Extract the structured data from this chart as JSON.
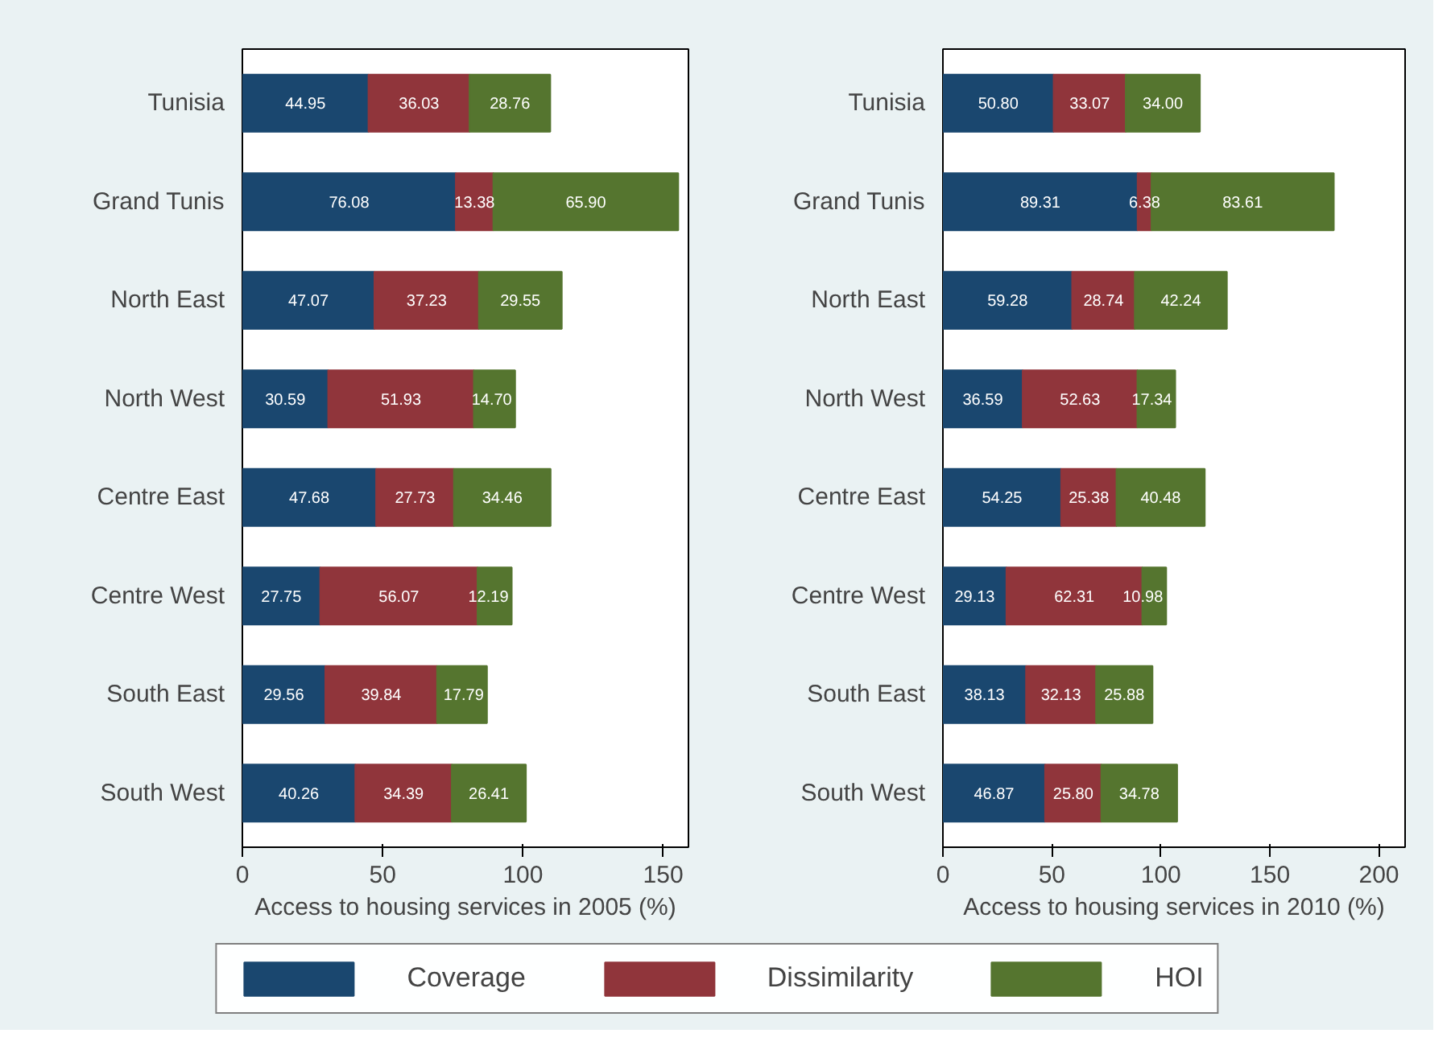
{
  "chart_data": [
    {
      "type": "bar",
      "orientation": "horizontal",
      "stacked": true,
      "xlabel": "Access to housing services in 2005 (%)",
      "categories": [
        "Tunisia",
        "Grand Tunis",
        "North East",
        "North West",
        "Centre East",
        "Centre West",
        "South East",
        "South West"
      ],
      "xlim": [
        0,
        159
      ],
      "xticks": [
        0,
        50,
        100,
        150
      ],
      "grid": false,
      "legend": "bottom",
      "series": [
        {
          "name": "Coverage",
          "color": "#1a476f",
          "values": [
            44.95,
            76.08,
            47.07,
            30.59,
            47.68,
            27.75,
            29.56,
            40.26
          ],
          "value_labels": [
            "44.95",
            "76.08",
            "47.07",
            "30.59",
            "47.68",
            "27.75",
            "29.56",
            "40.26"
          ]
        },
        {
          "name": "Dissimilarity",
          "color": "#90353b",
          "values": [
            36.03,
            13.38,
            37.23,
            51.93,
            27.73,
            56.07,
            39.84,
            34.39
          ],
          "value_labels": [
            "36.03",
            "13.38",
            "37.23",
            "51.93",
            "27.73",
            "56.07",
            "39.84",
            "34.39"
          ]
        },
        {
          "name": "HOI",
          "color": "#55752f",
          "values": [
            28.76,
            65.9,
            29.55,
            14.7,
            34.46,
            12.19,
            17.79,
            26.41
          ],
          "value_labels": [
            "28.76",
            "65.90",
            "29.55",
            "14.70",
            "34.46",
            "12.19",
            "17.79",
            "26.41"
          ]
        }
      ]
    },
    {
      "type": "bar",
      "orientation": "horizontal",
      "stacked": true,
      "xlabel": "Access to housing services in 2010 (%)",
      "categories": [
        "Tunisia",
        "Grand Tunis",
        "North East",
        "North West",
        "Centre East",
        "Centre West",
        "South East",
        "South West"
      ],
      "xlim": [
        0,
        212
      ],
      "xticks": [
        0,
        50,
        100,
        150,
        200
      ],
      "grid": false,
      "series": [
        {
          "color": "#1a476f",
          "values": [
            50.8,
            89.31,
            59.28,
            36.59,
            54.25,
            29.13,
            38.13,
            46.87
          ],
          "value_labels": [
            "50.80",
            "89.31",
            "59.28",
            "36.59",
            "54.25",
            "29.13",
            "38.13",
            "46.87"
          ]
        },
        {
          "color": "#90353b",
          "values": [
            33.07,
            6.38,
            28.74,
            52.63,
            25.38,
            62.31,
            32.13,
            25.8
          ],
          "value_labels": [
            "33.07",
            "6.38",
            "28.74",
            "52.63",
            "25.38",
            "62.31",
            "32.13",
            "25.80"
          ]
        },
        {
          "color": "#55752f",
          "values": [
            34.0,
            83.61,
            42.24,
            17.34,
            40.48,
            10.98,
            25.88,
            34.78
          ],
          "value_labels": [
            "34.00",
            "83.61",
            "42.24",
            "17.34",
            "40.48",
            "10.98",
            "25.88",
            "34.78"
          ]
        }
      ]
    }
  ]
}
